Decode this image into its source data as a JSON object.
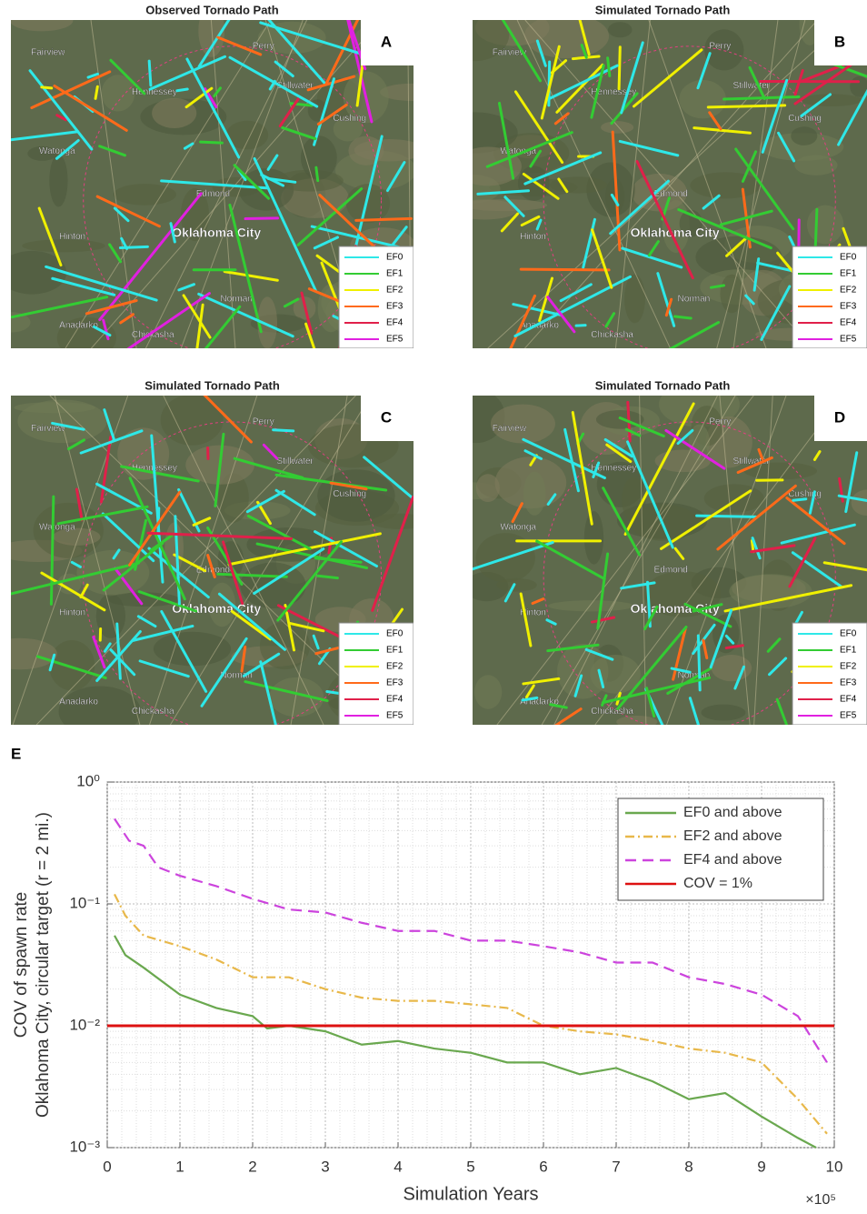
{
  "panels": [
    {
      "title": "Observed Tornado Path",
      "letter": "A",
      "legend": [
        {
          "name": "EF0",
          "color": "#2ee8e8"
        },
        {
          "name": "EF1",
          "color": "#33cc33"
        },
        {
          "name": "EF2",
          "color": "#f0f000"
        },
        {
          "name": "EF3",
          "color": "#ff6a1a"
        },
        {
          "name": "EF4",
          "color": "#e0204a"
        },
        {
          "name": "EF5",
          "color": "#e020e0"
        }
      ],
      "places": [
        "Fairview",
        "Hennessey",
        "Perry",
        "Stillwater",
        "Cushing",
        "Watonga",
        "Edmond",
        "Oklahoma City",
        "Hinton",
        "Norman",
        "Anadarko",
        "Chickasha"
      ]
    },
    {
      "title": "Simulated Tornado Path",
      "letter": "B",
      "legend": [
        {
          "name": "EF0",
          "color": "#2ee8e8"
        },
        {
          "name": "EF1",
          "color": "#33cc33"
        },
        {
          "name": "EF2",
          "color": "#f0f000"
        },
        {
          "name": "EF3",
          "color": "#ff6a1a"
        },
        {
          "name": "EF4",
          "color": "#e0204a"
        },
        {
          "name": "EF5",
          "color": "#e020e0"
        }
      ],
      "places": [
        "Fairview",
        "Hennessey",
        "Perry",
        "Stillwater",
        "Cushing",
        "Watonga",
        "Edmond",
        "Oklahoma City",
        "Hinton",
        "Norman",
        "Anadarko",
        "Chickasha"
      ]
    },
    {
      "title": "Simulated Tornado Path",
      "letter": "C",
      "legend": [
        {
          "name": "EF0",
          "color": "#2ee8e8"
        },
        {
          "name": "EF1",
          "color": "#33cc33"
        },
        {
          "name": "EF2",
          "color": "#f0f000"
        },
        {
          "name": "EF3",
          "color": "#ff6a1a"
        },
        {
          "name": "EF4",
          "color": "#e0204a"
        },
        {
          "name": "EF5",
          "color": "#e020e0"
        }
      ],
      "places": [
        "Fairview",
        "Hennessey",
        "Perry",
        "Stillwater",
        "Cushing",
        "Watonga",
        "Edmond",
        "Oklahoma City",
        "Hinton",
        "Norman",
        "Anadarko",
        "Chickasha"
      ]
    },
    {
      "title": "Simulated Tornado Path",
      "letter": "D",
      "legend": [
        {
          "name": "EF0",
          "color": "#2ee8e8"
        },
        {
          "name": "EF1",
          "color": "#33cc33"
        },
        {
          "name": "EF2",
          "color": "#f0f000"
        },
        {
          "name": "EF3",
          "color": "#ff6a1a"
        },
        {
          "name": "EF4",
          "color": "#e0204a"
        },
        {
          "name": "EF5",
          "color": "#e020e0"
        }
      ],
      "places": [
        "Fairview",
        "Hennessey",
        "Perry",
        "Stillwater",
        "Cushing",
        "Watonga",
        "Edmond",
        "Oklahoma City",
        "Hinton",
        "Norman",
        "Anadarko",
        "Chickasha"
      ]
    }
  ],
  "chart_data": {
    "type": "line",
    "panel_label": "E",
    "x_label": "Simulation Years",
    "x_multiplier": "×10⁵",
    "y_label": [
      "COV of spawn rate",
      "Oklahoma City, circular target (r = 2 mi.)"
    ],
    "y_scale": "log",
    "grid": true,
    "legend_position": "upper right",
    "xlim": [
      0,
      10
    ],
    "xticks": [
      0,
      1,
      2,
      3,
      4,
      5,
      6,
      7,
      8,
      9,
      10
    ],
    "ylim": [
      0.001,
      1
    ],
    "yticks": [
      {
        "value": 1,
        "label": "10⁰"
      },
      {
        "value": 0.1,
        "label": "10⁻¹"
      },
      {
        "value": 0.01,
        "label": "10⁻²"
      },
      {
        "value": 0.001,
        "label": "10⁻³"
      }
    ],
    "series": [
      {
        "name": "EF0 and above",
        "color": "#6aa84f",
        "dash": "solid",
        "x": [
          0.1,
          0.25,
          0.5,
          1,
          1.5,
          2,
          2.2,
          2.5,
          3,
          3.5,
          4,
          4.5,
          5,
          5.5,
          6,
          6.5,
          7,
          7.5,
          8,
          8.5,
          9,
          9.5,
          9.75
        ],
        "values": [
          0.055,
          0.038,
          0.03,
          0.018,
          0.014,
          0.012,
          0.0095,
          0.01,
          0.009,
          0.007,
          0.0075,
          0.0065,
          0.006,
          0.005,
          0.005,
          0.004,
          0.0045,
          0.0035,
          0.0025,
          0.0028,
          0.0018,
          0.0012,
          0.001
        ]
      },
      {
        "name": "EF2 and above",
        "color": "#e8b84a",
        "dash": "dashdot",
        "x": [
          0.1,
          0.25,
          0.5,
          1,
          1.5,
          2,
          2.5,
          3,
          3.5,
          4,
          4.5,
          5,
          5.5,
          6,
          6.5,
          7,
          7.5,
          8,
          8.5,
          9,
          9.5,
          9.9
        ],
        "values": [
          0.12,
          0.08,
          0.055,
          0.045,
          0.035,
          0.025,
          0.025,
          0.02,
          0.017,
          0.016,
          0.016,
          0.015,
          0.014,
          0.01,
          0.009,
          0.0085,
          0.0075,
          0.0065,
          0.006,
          0.005,
          0.0025,
          0.0013
        ]
      },
      {
        "name": "EF4 and above",
        "color": "#cc44dd",
        "dash": "dashed",
        "x": [
          0.1,
          0.3,
          0.5,
          0.7,
          1,
          1.5,
          2,
          2.5,
          3,
          3.5,
          4,
          4.5,
          5,
          5.5,
          6,
          6.5,
          7,
          7.5,
          8,
          8.5,
          9,
          9.5,
          9.9
        ],
        "values": [
          0.5,
          0.33,
          0.3,
          0.2,
          0.17,
          0.14,
          0.11,
          0.09,
          0.085,
          0.07,
          0.06,
          0.06,
          0.05,
          0.05,
          0.045,
          0.04,
          0.033,
          0.033,
          0.025,
          0.022,
          0.018,
          0.012,
          0.005
        ]
      },
      {
        "name": "COV = 1%",
        "color": "#dd1111",
        "dash": "solid",
        "x": [
          0,
          10
        ],
        "values": [
          0.01,
          0.01
        ]
      }
    ]
  }
}
